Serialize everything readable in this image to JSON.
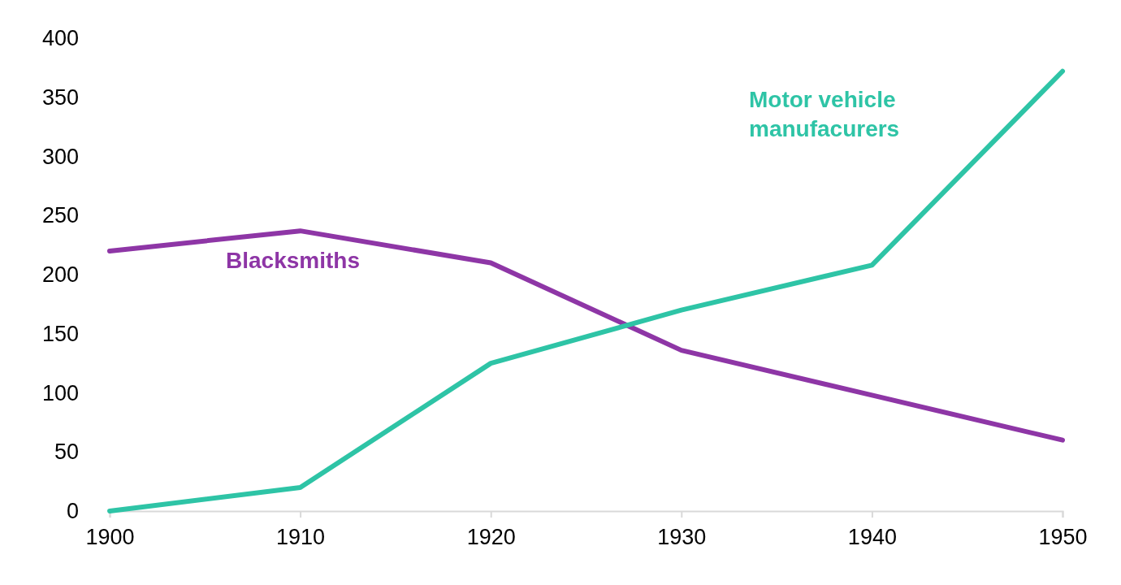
{
  "chart_data": {
    "type": "line",
    "x": [
      1900,
      1910,
      1920,
      1930,
      1940,
      1950
    ],
    "series": [
      {
        "name": "Blacksmiths",
        "color": "#8e36a6",
        "values": [
          220,
          237,
          210,
          136,
          98,
          60
        ]
      },
      {
        "name": "Motor vehicle manufacurers",
        "color": "#2ec4a6",
        "values": [
          0,
          20,
          125,
          170,
          208,
          372
        ]
      }
    ],
    "xlim": [
      1900,
      1950
    ],
    "xticks": [
      1900,
      1910,
      1920,
      1930,
      1940,
      1950
    ],
    "ylim": [
      0,
      400
    ],
    "yticks": [
      0,
      50,
      100,
      150,
      200,
      250,
      300,
      350,
      400
    ],
    "grid": false,
    "legend": false,
    "marker": "none",
    "line_style": "solid"
  }
}
